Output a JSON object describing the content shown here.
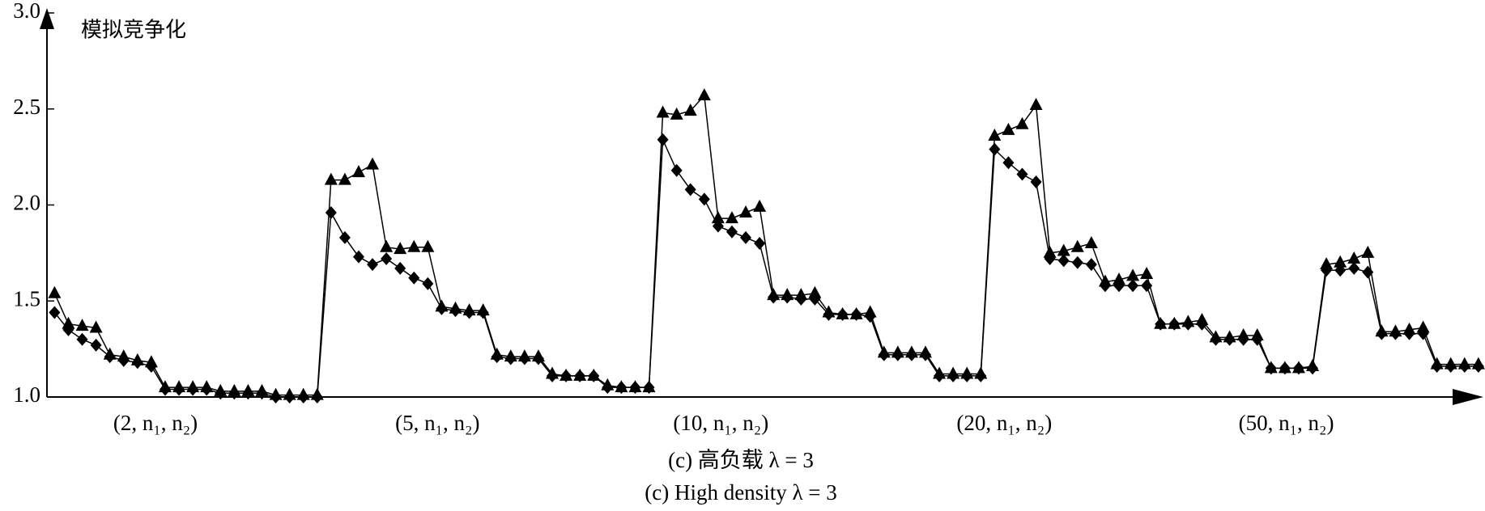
{
  "chart_data": {
    "type": "line",
    "y_label": "模拟竞争化",
    "caption": "(c) 高负载 λ = 3",
    "caption_en": "(c) High density λ = 3",
    "x": [
      1,
      2,
      3,
      4,
      5,
      6,
      7,
      8,
      9,
      10,
      11,
      12,
      13,
      14,
      15,
      16,
      17,
      18,
      19,
      20,
      21,
      22,
      23,
      24,
      25,
      26,
      27,
      28,
      29,
      30,
      31,
      32,
      33,
      34,
      35,
      36,
      37,
      38,
      39,
      40,
      41,
      42,
      43,
      44,
      45,
      46,
      47,
      48,
      49,
      50,
      51,
      52,
      53,
      54,
      55,
      56,
      57,
      58,
      59,
      60,
      61,
      62,
      63,
      64,
      65,
      66,
      67,
      68,
      69,
      70,
      71,
      72,
      73,
      74,
      75,
      76,
      77,
      78,
      79,
      80,
      81,
      82,
      83,
      84,
      85,
      86,
      87,
      88,
      89,
      90,
      91,
      92,
      93,
      94,
      95,
      96,
      97,
      98,
      99,
      100,
      101,
      102,
      103,
      104
    ],
    "xlim": [
      0.45,
      104.3
    ],
    "xticks": [
      {
        "value": 8.3,
        "label": "(2, n₁, n₂)"
      },
      {
        "value": 28.7,
        "label": "(5, n₁, n₂)"
      },
      {
        "value": 49.2,
        "label": "(10, n₁, n₂)"
      },
      {
        "value": 69.7,
        "label": "(20, n₁, n₂)"
      },
      {
        "value": 90.1,
        "label": "(50, n₁, n₂)"
      }
    ],
    "ylim": [
      1.0,
      3.0
    ],
    "yticks": [
      {
        "value": 1.0,
        "label": "1.0"
      },
      {
        "value": 1.5,
        "label": "1.5"
      },
      {
        "value": 2.0,
        "label": "2.0"
      },
      {
        "value": 2.5,
        "label": "2.5"
      },
      {
        "value": 3.0,
        "label": "3.0"
      }
    ],
    "grid": false,
    "series": [
      {
        "color": "#000000",
        "marker": "diamond",
        "values": [
          1.44,
          1.35,
          1.3,
          1.27,
          1.21,
          1.19,
          1.18,
          1.16,
          1.04,
          1.04,
          1.04,
          1.04,
          1.02,
          1.02,
          1.02,
          1.02,
          1.0,
          1.0,
          1.0,
          1.0,
          1.96,
          1.83,
          1.73,
          1.69,
          1.72,
          1.67,
          1.62,
          1.59,
          1.46,
          1.45,
          1.44,
          1.44,
          1.21,
          1.2,
          1.2,
          1.2,
          1.11,
          1.11,
          1.11,
          1.11,
          1.05,
          1.05,
          1.05,
          1.05,
          2.34,
          2.18,
          2.08,
          2.03,
          1.89,
          1.86,
          1.83,
          1.8,
          1.52,
          1.52,
          1.51,
          1.51,
          1.43,
          1.43,
          1.43,
          1.42,
          1.22,
          1.22,
          1.22,
          1.22,
          1.11,
          1.11,
          1.11,
          1.11,
          2.29,
          2.22,
          2.16,
          2.12,
          1.72,
          1.71,
          1.7,
          1.69,
          1.58,
          1.58,
          1.58,
          1.58,
          1.38,
          1.38,
          1.38,
          1.38,
          1.3,
          1.3,
          1.3,
          1.3,
          1.15,
          1.15,
          1.15,
          1.15,
          1.66,
          1.66,
          1.67,
          1.65,
          1.33,
          1.33,
          1.33,
          1.33,
          1.16,
          1.16,
          1.16,
          1.16
        ]
      },
      {
        "color": "#000000",
        "marker": "triangle",
        "values": [
          1.54,
          1.38,
          1.37,
          1.36,
          1.22,
          1.21,
          1.19,
          1.18,
          1.05,
          1.05,
          1.05,
          1.05,
          1.03,
          1.03,
          1.03,
          1.03,
          1.01,
          1.01,
          1.01,
          1.01,
          2.13,
          2.13,
          2.17,
          2.21,
          1.78,
          1.77,
          1.78,
          1.78,
          1.47,
          1.46,
          1.45,
          1.45,
          1.22,
          1.21,
          1.21,
          1.21,
          1.12,
          1.11,
          1.11,
          1.11,
          1.06,
          1.05,
          1.05,
          1.05,
          2.48,
          2.47,
          2.49,
          2.57,
          1.93,
          1.93,
          1.96,
          1.99,
          1.53,
          1.53,
          1.53,
          1.54,
          1.44,
          1.43,
          1.43,
          1.44,
          1.23,
          1.23,
          1.23,
          1.23,
          1.12,
          1.12,
          1.12,
          1.12,
          2.36,
          2.39,
          2.42,
          2.52,
          1.75,
          1.76,
          1.78,
          1.8,
          1.6,
          1.61,
          1.63,
          1.64,
          1.38,
          1.38,
          1.39,
          1.4,
          1.31,
          1.31,
          1.32,
          1.32,
          1.15,
          1.15,
          1.15,
          1.16,
          1.69,
          1.7,
          1.72,
          1.75,
          1.34,
          1.34,
          1.35,
          1.36,
          1.17,
          1.17,
          1.17,
          1.17
        ]
      }
    ]
  }
}
